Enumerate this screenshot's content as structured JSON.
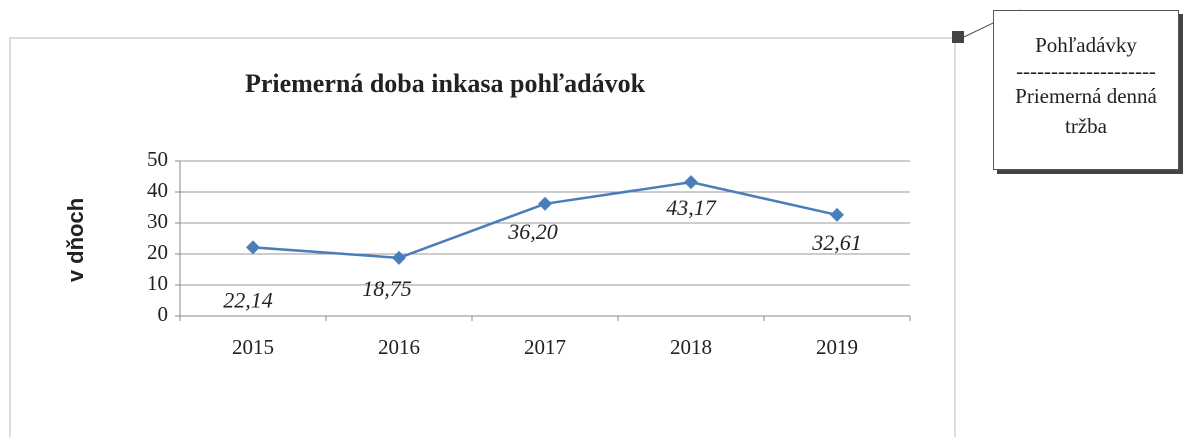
{
  "chart_data": {
    "type": "line",
    "title": "Priemerná doba inkasa pohľadávok",
    "y_label": "v dňoch",
    "categories": [
      "2015",
      "2016",
      "2017",
      "2018",
      "2019"
    ],
    "series": [
      {
        "name": "Priemerná doba inkasa pohľadávok",
        "color": "#4a7ebb",
        "values": [
          22.14,
          18.75,
          36.2,
          43.17,
          32.61
        ],
        "value_labels": [
          "22,14",
          "18,75",
          "36,20",
          "43,17",
          "32,61"
        ]
      }
    ],
    "ylim": [
      0,
      50
    ],
    "yticks": [
      0,
      10,
      20,
      30,
      40,
      50
    ],
    "grid": true,
    "annotation": {
      "numerator": "Pohľadávky",
      "separator": "--------------------",
      "denominator": "Priemerná denná tržba"
    }
  }
}
